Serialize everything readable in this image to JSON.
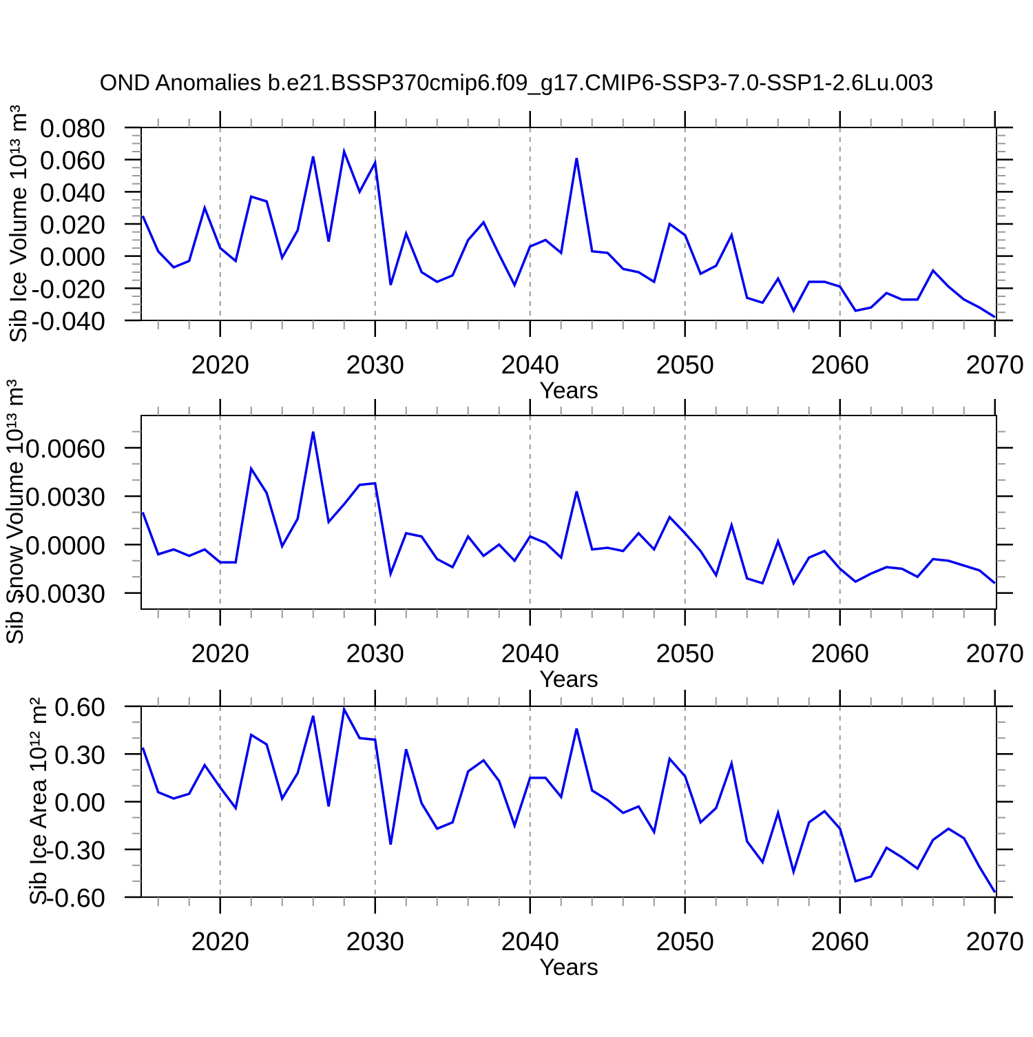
{
  "title": "OND Anomalies b.e21.BSSP370cmip6.f09_g17.CMIP6-SSP3-7.0-SSP1-2.6Lu.003",
  "x_axis": {
    "label": "Years",
    "start_year": 2015,
    "end_year": 2070,
    "xlim": [
      2014.9,
      2070.1
    ],
    "major_ticks": [
      2020,
      2030,
      2040,
      2050,
      2060,
      2070
    ],
    "major_tick_labels": [
      "2020",
      "2030",
      "2040",
      "2050",
      "2060",
      "2070"
    ],
    "minor_tick_step": 2,
    "gridline_years": [
      2020,
      2030,
      2040,
      2050,
      2060
    ]
  },
  "style": {
    "line_color": "#0000ee",
    "grid_color": "#999999",
    "axis_color": "#000000",
    "minor_tick_color": "#999999",
    "background": "#ffffff"
  },
  "chart_data": [
    {
      "type": "line",
      "ylabel": "Sib Ice Volume 10¹³ m³",
      "xlabel": "Years",
      "ylim": [
        -0.04,
        0.08
      ],
      "ytick_values": [
        0.08,
        0.06,
        0.04,
        0.02,
        0.0,
        -0.02,
        -0.04
      ],
      "ytick_labels": [
        "0.080",
        "0.060",
        "0.040",
        "0.020",
        "0.000",
        "-0.020",
        "-0.040"
      ],
      "yminor_step": 0.005,
      "grid": "vertical-dashed",
      "legend": "none",
      "x_start": 2015,
      "values": [
        0.025,
        0.003,
        -0.007,
        -0.003,
        0.03,
        0.005,
        -0.003,
        0.037,
        0.034,
        -0.001,
        0.016,
        0.062,
        0.009,
        0.065,
        0.04,
        0.058,
        -0.018,
        0.014,
        -0.01,
        -0.016,
        -0.012,
        0.01,
        0.021,
        0.001,
        -0.018,
        0.006,
        0.01,
        0.002,
        0.061,
        0.003,
        0.002,
        -0.008,
        -0.01,
        -0.016,
        0.02,
        0.013,
        -0.011,
        -0.006,
        0.013,
        -0.026,
        -0.029,
        -0.014,
        -0.034,
        -0.016,
        -0.016,
        -0.019,
        -0.034,
        -0.032,
        -0.023,
        -0.027,
        -0.027,
        -0.009,
        -0.019,
        -0.027,
        -0.032,
        -0.038
      ]
    },
    {
      "type": "line",
      "ylabel": "Sib Snow Volume 10¹³ m³",
      "xlabel": "Years",
      "ylim": [
        -0.004,
        0.008
      ],
      "ytick_values": [
        0.006,
        0.003,
        0.0,
        -0.003
      ],
      "ytick_labels": [
        "0.0060",
        "0.0030",
        "0.0000",
        "-0.0030"
      ],
      "yminor_step": 0.001,
      "grid": "vertical-dashed",
      "legend": "none",
      "x_start": 2015,
      "values": [
        0.002,
        -0.0006,
        -0.0003,
        -0.0007,
        -0.0003,
        -0.0011,
        -0.0011,
        0.0047,
        0.0032,
        -0.0001,
        0.0016,
        0.007,
        0.0014,
        0.0025,
        0.0037,
        0.0038,
        -0.0018,
        0.0007,
        0.0005,
        -0.0009,
        -0.0014,
        0.0005,
        -0.0007,
        0.0,
        -0.001,
        0.0005,
        0.0001,
        -0.0008,
        0.0033,
        -0.0003,
        -0.0002,
        -0.0004,
        0.0007,
        -0.0003,
        0.0017,
        0.0007,
        -0.0004,
        -0.0019,
        0.0012,
        -0.0021,
        -0.0024,
        0.0002,
        -0.0024,
        -0.0008,
        -0.0004,
        -0.0015,
        -0.0023,
        -0.0018,
        -0.0014,
        -0.0015,
        -0.002,
        -0.0009,
        -0.001,
        -0.0013,
        -0.0016,
        -0.0024
      ]
    },
    {
      "type": "line",
      "ylabel": "Sib Ice Area 10¹² m²",
      "xlabel": "Years",
      "ylim": [
        -0.6,
        0.6
      ],
      "ytick_values": [
        0.6,
        0.3,
        0.0,
        -0.3,
        -0.6
      ],
      "ytick_labels": [
        "0.60",
        "0.30",
        "0.00",
        "-0.30",
        "-0.60"
      ],
      "yminor_step": 0.1,
      "grid": "vertical-dashed",
      "legend": "none",
      "x_start": 2015,
      "values": [
        0.34,
        0.06,
        0.02,
        0.05,
        0.23,
        0.09,
        -0.04,
        0.42,
        0.36,
        0.02,
        0.18,
        0.54,
        -0.03,
        0.58,
        0.4,
        0.39,
        -0.27,
        0.33,
        -0.01,
        -0.17,
        -0.13,
        0.19,
        0.26,
        0.13,
        -0.15,
        0.15,
        0.15,
        0.03,
        0.46,
        0.07,
        0.01,
        -0.07,
        -0.03,
        -0.19,
        0.27,
        0.16,
        -0.13,
        -0.04,
        0.24,
        -0.25,
        -0.38,
        -0.07,
        -0.44,
        -0.13,
        -0.06,
        -0.17,
        -0.5,
        -0.47,
        -0.29,
        -0.35,
        -0.42,
        -0.24,
        -0.17,
        -0.23,
        -0.41,
        -0.57
      ]
    }
  ]
}
